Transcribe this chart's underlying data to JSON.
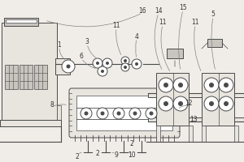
{
  "bg_color": "#f0ede8",
  "line_color": "#4a4a4a",
  "fill_white": "#ffffff",
  "fill_light": "#e8e5df",
  "fill_medium": "#c8c5bf",
  "fill_dark": "#a8a5a0",
  "label_color": "#333333",
  "fig_w": 3.0,
  "fig_h": 2.0,
  "dpi": 100
}
